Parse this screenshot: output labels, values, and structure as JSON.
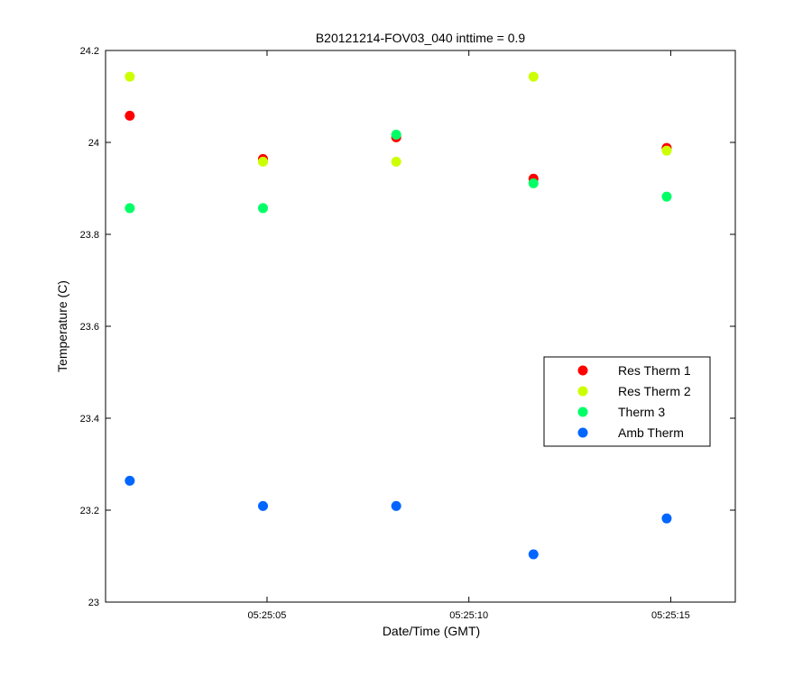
{
  "chart_data": {
    "type": "scatter",
    "title": "B20121214-FOV03_040 inttime = 0.9",
    "xlabel": "Date/Time (GMT)",
    "ylabel": "Temperature (C)",
    "x": [
      "05:25:01.6",
      "05:25:04.9",
      "05:25:08.2",
      "05:25:11.6",
      "05:25:14.9"
    ],
    "xlim": [
      "05:25:01",
      "05:25:16.6"
    ],
    "xticks": [
      "05:25:05",
      "05:25:10",
      "05:25:15"
    ],
    "ylim": [
      23,
      24.2
    ],
    "yticks": [
      "23",
      "23.2",
      "23.4",
      "23.6",
      "23.8",
      "24",
      "24.2"
    ],
    "grid": false,
    "legend_position": "right",
    "series": [
      {
        "name": "Res Therm 1",
        "color": "#ff0000",
        "values": [
          24.058,
          23.964,
          24.011,
          23.921,
          23.988
        ]
      },
      {
        "name": "Res Therm 2",
        "color": "#ccff00",
        "values": [
          24.143,
          23.958,
          23.958,
          24.143,
          23.982
        ]
      },
      {
        "name": "Therm 3",
        "color": "#00ff66",
        "values": [
          23.857,
          23.857,
          24.017,
          23.911,
          23.882
        ]
      },
      {
        "name": "Amb Therm",
        "color": "#0066ff",
        "values": [
          23.264,
          23.209,
          23.209,
          23.104,
          23.182
        ]
      }
    ]
  }
}
